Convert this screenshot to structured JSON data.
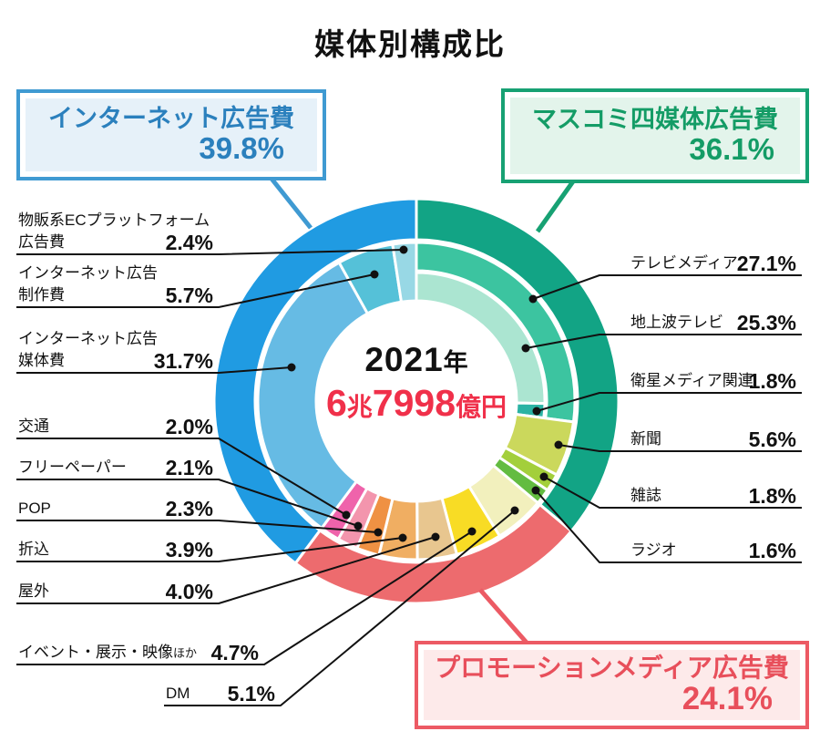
{
  "title": "媒体別構成比",
  "center": {
    "year_number": "2021",
    "year_suffix": "年",
    "total": "6兆7998億円",
    "total_parts": [
      {
        "t": "6",
        "big": true
      },
      {
        "t": "兆",
        "big": false
      },
      {
        "t": "7998",
        "big": true
      },
      {
        "t": "億円",
        "big": false
      }
    ],
    "total_color": "#f0304a"
  },
  "boxes": {
    "internet": {
      "label": "インターネット広告費",
      "pct": "39.8%",
      "border": "#3f9ad2",
      "text": "#2b80bd",
      "fill": "#e6f1f9"
    },
    "mass_media": {
      "label": "マスコミ四媒体広告費",
      "pct": "36.1%",
      "border": "#17a173",
      "text": "#149c66",
      "fill": "#e3f4eb"
    },
    "promotion": {
      "label": "プロモーションメディア広告費",
      "pct": "24.1%",
      "border": "#ec5a64",
      "text": "#e84f5b",
      "fill": "#fdeaea"
    }
  },
  "chart_data": {
    "type": "pie",
    "variant": "double-donut",
    "title": "媒体別構成比",
    "units": "%",
    "center_label": "2021年 6兆7998億円",
    "start_at_top_clockwise": true,
    "outer_ring": [
      {
        "label": "マスコミ四媒体広告費",
        "value": 36.1,
        "pct": "36.1%",
        "color": "#12a485"
      },
      {
        "label": "プロモーションメディア広告費",
        "value": 24.1,
        "pct": "24.1%",
        "color": "#ed6b6e"
      },
      {
        "label": "インターネット広告費",
        "value": 39.8,
        "pct": "39.8%",
        "color": "#209be2"
      }
    ],
    "inner_ring": [
      {
        "id": "tvmedia",
        "label": "テレビメディア",
        "label_lines": [
          "テレビメディア"
        ],
        "value": 27.1,
        "pct": "27.1%",
        "color": "#3cc4a0",
        "split": true
      },
      {
        "id": "shinbun",
        "label": "新聞",
        "label_lines": [
          "新聞"
        ],
        "value": 5.6,
        "pct": "5.6%",
        "color": "#cbd85c"
      },
      {
        "id": "zasshi",
        "label": "雑誌",
        "label_lines": [
          "雑誌"
        ],
        "value": 1.8,
        "pct": "1.8%",
        "color": "#a3cf3b"
      },
      {
        "id": "radio",
        "label": "ラジオ",
        "label_lines": [
          "ラジオ"
        ],
        "value": 1.6,
        "pct": "1.6%",
        "color": "#63bc41"
      },
      {
        "id": "dm",
        "label": "DM",
        "label_lines": [
          "DM"
        ],
        "value": 5.1,
        "pct": "5.1%",
        "color": "#f2f0bd"
      },
      {
        "id": "event",
        "label": "イベント・展示・映像ほか",
        "label_lines": [
          "イベント・展示・映像"
        ],
        "suffix": "ほか",
        "value": 4.7,
        "pct": "4.7%",
        "color": "#f8dc25"
      },
      {
        "id": "okugai",
        "label": "屋外",
        "label_lines": [
          "屋外"
        ],
        "value": 4.0,
        "pct": "4.0%",
        "color": "#e8c68f"
      },
      {
        "id": "orikomi",
        "label": "折込",
        "label_lines": [
          "折込"
        ],
        "value": 3.9,
        "pct": "3.9%",
        "color": "#f0ae62"
      },
      {
        "id": "pop",
        "label": "POP",
        "label_lines": [
          "POP"
        ],
        "value": 2.3,
        "pct": "2.3%",
        "color": "#ef9143"
      },
      {
        "id": "free",
        "label": "フリーペーパー",
        "label_lines": [
          "フリーペーパー"
        ],
        "value": 2.1,
        "pct": "2.1%",
        "color": "#f395ad"
      },
      {
        "id": "kotsu",
        "label": "交通",
        "label_lines": [
          "交通"
        ],
        "value": 2.0,
        "pct": "2.0%",
        "color": "#ef63ab"
      },
      {
        "id": "baitai",
        "label": "インターネット広告媒体費",
        "label_lines": [
          "インターネット広告",
          "媒体費"
        ],
        "value": 31.7,
        "pct": "31.7%",
        "color": "#66bbe4"
      },
      {
        "id": "seisaku",
        "label": "インターネット広告制作費",
        "label_lines": [
          "インターネット広告",
          "制作費"
        ],
        "value": 5.7,
        "pct": "5.7%",
        "color": "#55c1d8"
      },
      {
        "id": "ec",
        "label": "物販系ECプラットフォーム広告費",
        "label_lines": [
          "物販系ECプラットフォーム",
          "広告費"
        ],
        "value": 2.4,
        "pct": "2.4%",
        "color": "#98d8e5"
      }
    ],
    "tv_breakdown": [
      {
        "id": "chijoha",
        "label": "地上波テレビ",
        "label_lines": [
          "地上波テレビ"
        ],
        "value": 25.3,
        "pct": "25.3%",
        "color": "#abe5d1"
      },
      {
        "id": "eisei",
        "label": "衛星メディア関連",
        "label_lines": [
          "衛星メディア関連"
        ],
        "value": 1.8,
        "pct": "1.8%",
        "color": "#2bb3a4"
      }
    ]
  }
}
